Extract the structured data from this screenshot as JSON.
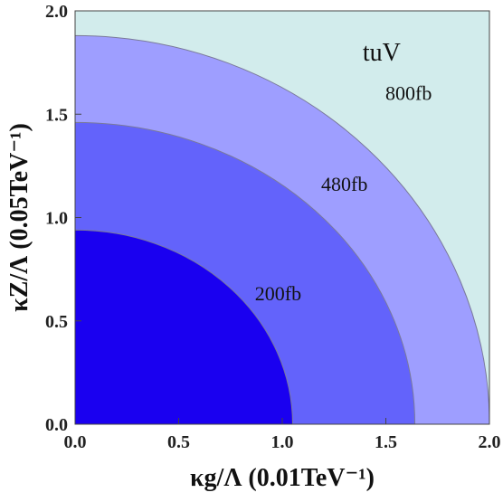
{
  "chart_data": {
    "type": "contour",
    "title": "",
    "xlabel": "κg/Λ (0.01TeV⁻¹)",
    "ylabel": "κZ/Λ (0.05TeV⁻¹)",
    "xlim": [
      0.0,
      2.0
    ],
    "ylim": [
      0.0,
      2.0
    ],
    "xticks": [
      "0.0",
      "0.5",
      "1.0",
      "1.5",
      "2.0"
    ],
    "yticks": [
      "0.0",
      "0.5",
      "1.0",
      "1.5",
      "2.0"
    ],
    "annotation": "tuV",
    "contours": [
      {
        "label": "800fb",
        "x_radius": 2.0,
        "y_radius": 1.88,
        "color": "#9e9eff"
      },
      {
        "label": "480fb",
        "x_radius": 1.64,
        "y_radius": 1.46,
        "color": "#6363fb"
      },
      {
        "label": "200fb",
        "x_radius": 1.05,
        "y_radius": 0.94,
        "color": "#1a00f0"
      }
    ],
    "label_positions": [
      {
        "label": "800fb",
        "x": 1.61,
        "y": 1.57
      },
      {
        "label": "480fb",
        "x": 1.3,
        "y": 1.13
      },
      {
        "label": "200fb",
        "x": 0.98,
        "y": 0.6
      }
    ],
    "annotation_position": {
      "x": 1.48,
      "y": 1.76
    },
    "background_color": "#d2ecec",
    "grid": false,
    "legend": "none"
  }
}
